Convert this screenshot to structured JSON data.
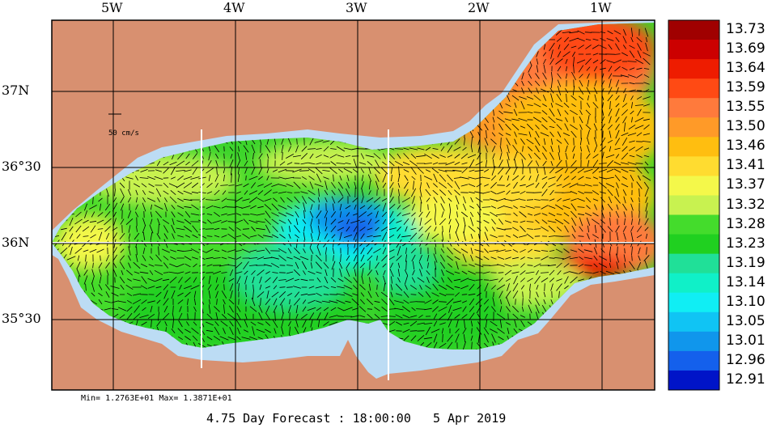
{
  "lon_labels": [
    {
      "text": "5W",
      "lon": -5
    },
    {
      "text": "4W",
      "lon": -4
    },
    {
      "text": "3W",
      "lon": -3
    },
    {
      "text": "2W",
      "lon": -2
    },
    {
      "text": "1W",
      "lon": -1
    }
  ],
  "lat_labels": [
    {
      "text": "37N",
      "lat": 37.0
    },
    {
      "text": "36°30",
      "lat": 36.5
    },
    {
      "text": "36N",
      "lat": 36.0
    },
    {
      "text": "35°30",
      "lat": 35.5
    }
  ],
  "scale_label": "50 cm/s",
  "colorbar": {
    "values": [
      "13.73",
      "13.69",
      "13.64",
      "13.59",
      "13.55",
      "13.50",
      "13.46",
      "13.41",
      "13.37",
      "13.32",
      "13.28",
      "13.23",
      "13.19",
      "13.14",
      "13.10",
      "13.05",
      "13.01",
      "12.96",
      "12.91"
    ],
    "colors": [
      "#a00000",
      "#cc0000",
      "#ee1c00",
      "#ff4a14",
      "#ff7a3c",
      "#ff9a28",
      "#ffbe10",
      "#ffdc30",
      "#f4f84a",
      "#c8f250",
      "#44dc2c",
      "#20d020",
      "#20e098",
      "#10f0c8",
      "#10eef4",
      "#10c4f4",
      "#1096ec",
      "#1460ec",
      "#0014c8"
    ]
  },
  "map_colors": {
    "land": "#d89070",
    "shelf": "#bcdcf4",
    "arrow": "#000000"
  },
  "minmax_text": "Min= 1.2763E+01  Max= 1.3871E+01",
  "footer_text": "4.75 Day Forecast : 18:00:00   5 Apr 2019"
}
